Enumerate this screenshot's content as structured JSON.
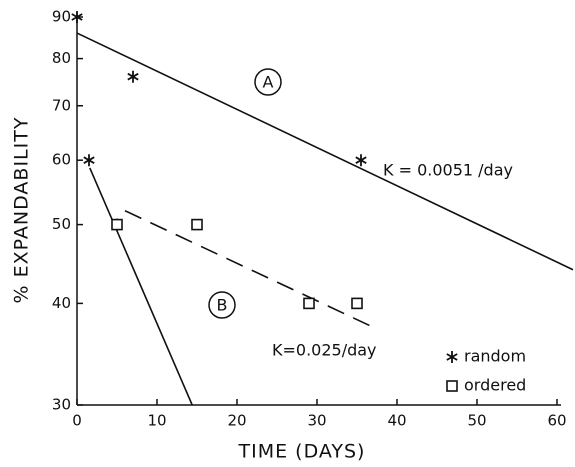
{
  "chart_data": {
    "type": "scatter",
    "x_label": "TIME (DAYS)",
    "y_label": "% EXPANDABILITY",
    "xlim": [
      0,
      60
    ],
    "xticks": [
      0,
      10,
      20,
      30,
      40,
      50,
      60
    ],
    "ylim": [
      30,
      90
    ],
    "yticks": [
      30,
      40,
      50,
      60,
      70,
      80,
      90
    ],
    "y_scale": "log",
    "grid": false,
    "legend_position": "lower right",
    "series": [
      {
        "name": "random",
        "color": "#111111",
        "marker": "asterisk",
        "x": [
          0,
          7,
          35.5,
          1.5,
          5
        ],
        "values": [
          90,
          76,
          60,
          60,
          50
        ]
      },
      {
        "name": "ordered",
        "color": "#111111",
        "marker": "square",
        "x": [
          5,
          15,
          29,
          35
        ],
        "values": [
          50,
          50,
          40,
          40
        ]
      }
    ],
    "lines": [
      {
        "color": "#111111",
        "dashed": false,
        "x": [
          0,
          62
        ],
        "values": [
          86,
          44
        ]
      },
      {
        "color": "#111111",
        "dashed": true,
        "x": [
          6,
          37
        ],
        "values": [
          52,
          37.4
        ]
      },
      {
        "color": "#111111",
        "dashed": false,
        "x": [
          1.6,
          14.4
        ],
        "values": [
          58.7,
          30
        ]
      }
    ],
    "annotations": [
      "A",
      "B",
      "K = 0.0051 /day",
      "K=0.025/day"
    ]
  }
}
